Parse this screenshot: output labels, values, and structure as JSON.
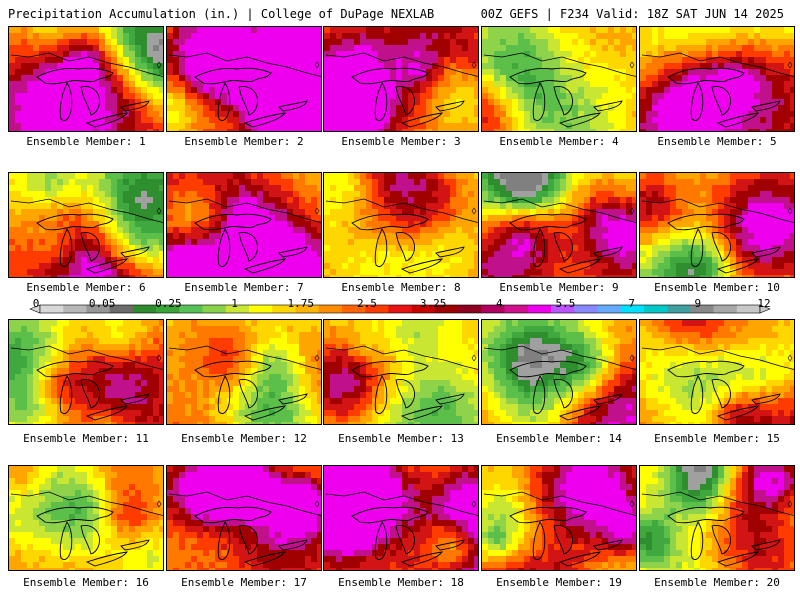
{
  "header": {
    "left_title": "Precipitation Accumulation (in.) | College of DuPage NEXLAB",
    "right_title": "00Z GEFS | F234 Valid: 18Z SAT JUN 14 2025"
  },
  "members": [
    {
      "label": "Ensemble Member: 1"
    },
    {
      "label": "Ensemble Member: 2"
    },
    {
      "label": "Ensemble Member: 3"
    },
    {
      "label": "Ensemble Member: 4"
    },
    {
      "label": "Ensemble Member: 5"
    },
    {
      "label": "Ensemble Member: 6"
    },
    {
      "label": "Ensemble Member: 7"
    },
    {
      "label": "Ensemble Member: 8"
    },
    {
      "label": "Ensemble Member: 9"
    },
    {
      "label": "Ensemble Member: 10"
    },
    {
      "label": "Ensemble Member: 11"
    },
    {
      "label": "Ensemble Member: 12"
    },
    {
      "label": "Ensemble Member: 13"
    },
    {
      "label": "Ensemble Member: 14"
    },
    {
      "label": "Ensemble Member: 15"
    },
    {
      "label": "Ensemble Member: 16"
    },
    {
      "label": "Ensemble Member: 17"
    },
    {
      "label": "Ensemble Member: 18"
    },
    {
      "label": "Ensemble Member: 19"
    },
    {
      "label": "Ensemble Member: 20"
    }
  ],
  "colorbar": {
    "tick_labels": [
      "0",
      "0.05",
      "0.25",
      "1",
      "1.75",
      "2.5",
      "3.25",
      "4",
      "5.5",
      "7",
      "9",
      "12"
    ],
    "colors": [
      "#d8d8d8",
      "#b8b8b8",
      "#969696",
      "#6c6c6c",
      "#2e8b2e",
      "#3aa63a",
      "#56c156",
      "#8ad24a",
      "#c8e632",
      "#ffff00",
      "#ffd700",
      "#ffb400",
      "#ff8c00",
      "#ff6400",
      "#ff3c00",
      "#e81414",
      "#c80000",
      "#a00000",
      "#900020",
      "#b00060",
      "#d0108c",
      "#ee00ee",
      "#bb55ff",
      "#8888ff",
      "#66aaff",
      "#00e0ff",
      "#00c8c8",
      "#40a0a0",
      "#888888",
      "#a8a8a8",
      "#c8c8c8"
    ]
  }
}
